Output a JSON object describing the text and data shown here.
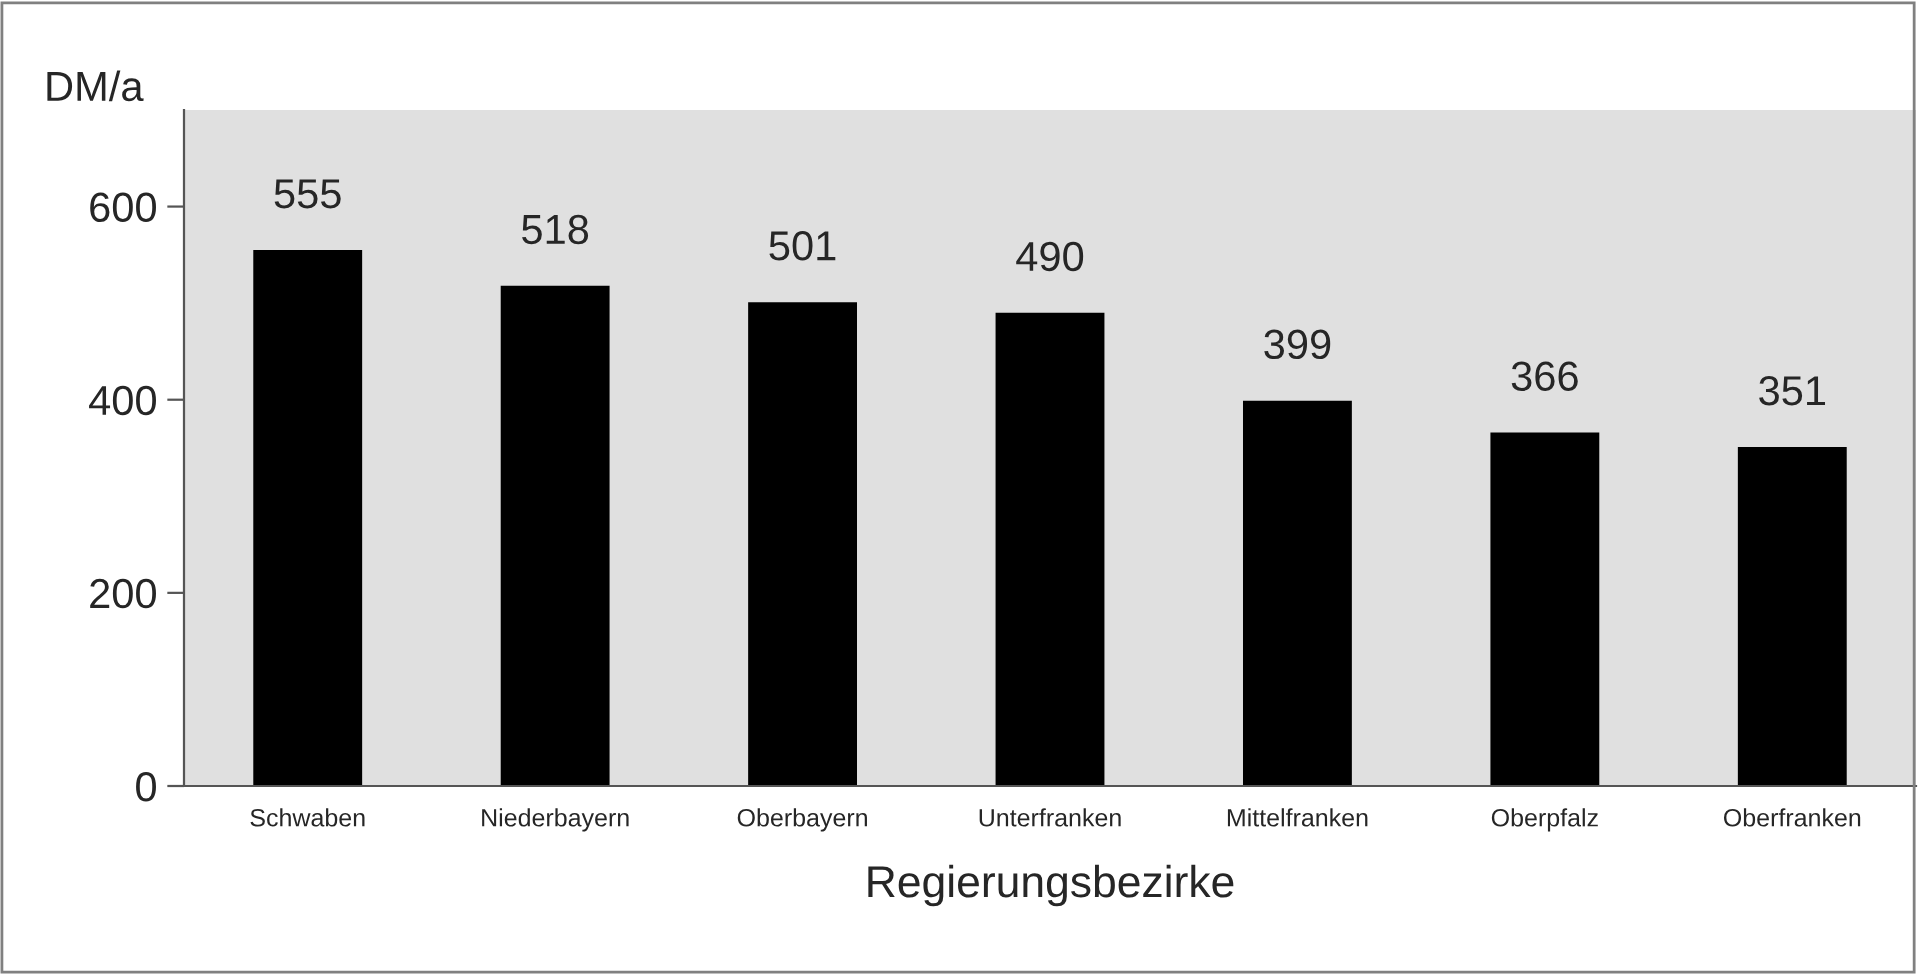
{
  "chart_data": {
    "type": "bar",
    "xlabel": "Regierungsbezirke",
    "ylabel": "DM/a",
    "categories": [
      "Schwaben",
      "Niederbayern",
      "Oberbayern",
      "Unterfranken",
      "Mittelfranken",
      "Oberpfalz",
      "Oberfranken"
    ],
    "values": [
      555,
      518,
      501,
      490,
      399,
      366,
      351
    ],
    "color": "#000000",
    "ylim": [
      0,
      700
    ],
    "yticks": [
      0,
      200,
      400,
      600
    ],
    "grid": false,
    "data_labels": true
  }
}
